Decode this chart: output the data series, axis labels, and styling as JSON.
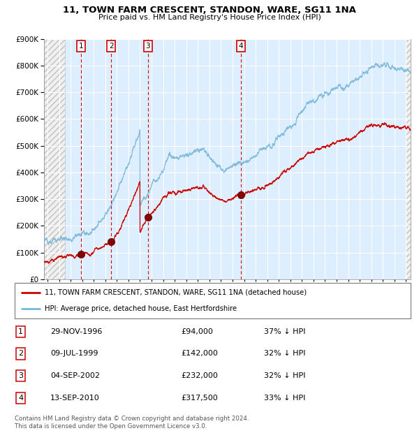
{
  "title": "11, TOWN FARM CRESCENT, STANDON, WARE, SG11 1NA",
  "subtitle": "Price paid vs. HM Land Registry's House Price Index (HPI)",
  "legend_line1": "11, TOWN FARM CRESCENT, STANDON, WARE, SG11 1NA (detached house)",
  "legend_line2": "HPI: Average price, detached house, East Hertfordshire",
  "footer1": "Contains HM Land Registry data © Crown copyright and database right 2024.",
  "footer2": "This data is licensed under the Open Government Licence v3.0.",
  "sale_dates": [
    1996.92,
    1999.52,
    2002.68,
    2010.71
  ],
  "sale_prices": [
    94000,
    142000,
    232000,
    317500
  ],
  "sale_labels": [
    "1",
    "2",
    "3",
    "4"
  ],
  "table_rows": [
    [
      "1",
      "29-NOV-1996",
      "£94,000",
      "37% ↓ HPI"
    ],
    [
      "2",
      "09-JUL-1999",
      "£142,000",
      "32% ↓ HPI"
    ],
    [
      "3",
      "04-SEP-2002",
      "£232,000",
      "32% ↓ HPI"
    ],
    [
      "4",
      "13-SEP-2010",
      "£317,500",
      "33% ↓ HPI"
    ]
  ],
  "hpi_color": "#7ab8d9",
  "price_color": "#cc0000",
  "sale_marker_color": "#880000",
  "dashed_line_color": "#cc0000",
  "background_color": "#ddeeff",
  "grid_color": "#ffffff",
  "ylim": [
    0,
    900000
  ],
  "xlim_start": 1993.7,
  "xlim_end": 2025.4,
  "hatch_end": 1995.5,
  "hatch_start_right": 2025.0
}
